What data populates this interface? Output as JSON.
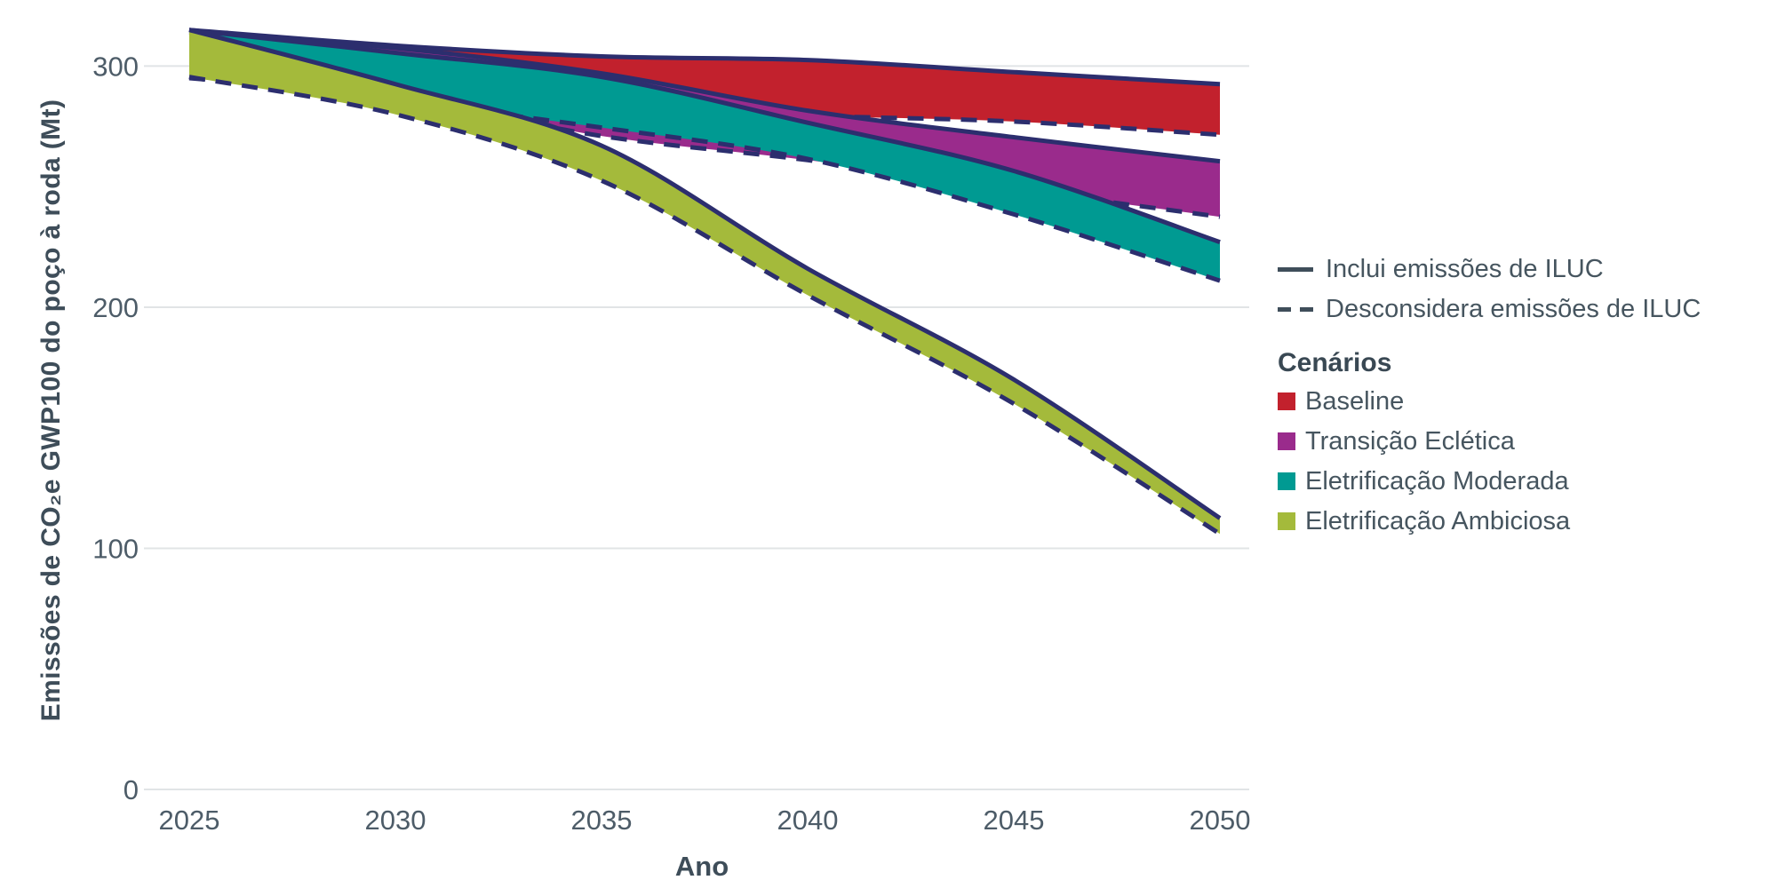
{
  "legend": {
    "solid_label": "Inclui emissões de ILUC",
    "dashed_label": "Desconsidera emissões de ILUC",
    "scenarios_title": "Cenários"
  },
  "chart_data": {
    "type": "area",
    "title": "",
    "xlabel": "Ano",
    "ylabel": "Emissões de CO₂e GWP100 do poço à roda (Mt)",
    "unit": "Mt",
    "grid": true,
    "legend_position": "right",
    "ylim": [
      0,
      327
    ],
    "years": [
      2025,
      2030,
      2035,
      2040,
      2045,
      2050
    ],
    "xtick_labels": [
      "2025",
      "2030",
      "2035",
      "2040",
      "2045",
      "2050"
    ],
    "ytick_values": [
      0,
      100,
      200,
      300
    ],
    "ytick_labels": [
      "0",
      "100",
      "200",
      "300"
    ],
    "line_meaning": {
      "solid": "Inclui emissões de ILUC",
      "dashed": "Desconsidera emissões de ILUC"
    },
    "line_color": "#2c2e6e",
    "series": [
      {
        "name": "Baseline",
        "color": "#c2212d",
        "with_iluc": [
          315,
          308.5,
          304,
          302.5,
          297.5,
          292.5
        ],
        "without_iluc": [
          295.5,
          288.5,
          283.5,
          279.5,
          277,
          271.5
        ]
      },
      {
        "name": "Transição Eclética",
        "color": "#9a2b8c",
        "with_iluc": [
          314,
          307.5,
          297,
          281.5,
          270.5,
          260.5
        ],
        "without_iluc": [
          295,
          287,
          271,
          261,
          249,
          237.5
        ]
      },
      {
        "name": "Eletrificação Moderada",
        "color": "#009a92",
        "with_iluc": [
          315,
          305.5,
          295.5,
          276.5,
          256.5,
          227
        ],
        "without_iluc": [
          295.5,
          285.5,
          274.5,
          261.5,
          238.5,
          211
        ]
      },
      {
        "name": "Eletrificação Ambiciosa",
        "color": "#a4ba3b",
        "with_iluc": [
          315,
          292.5,
          267,
          216,
          170,
          112.5
        ],
        "without_iluc": [
          295.5,
          280,
          252.5,
          205,
          160,
          106
        ]
      }
    ]
  }
}
